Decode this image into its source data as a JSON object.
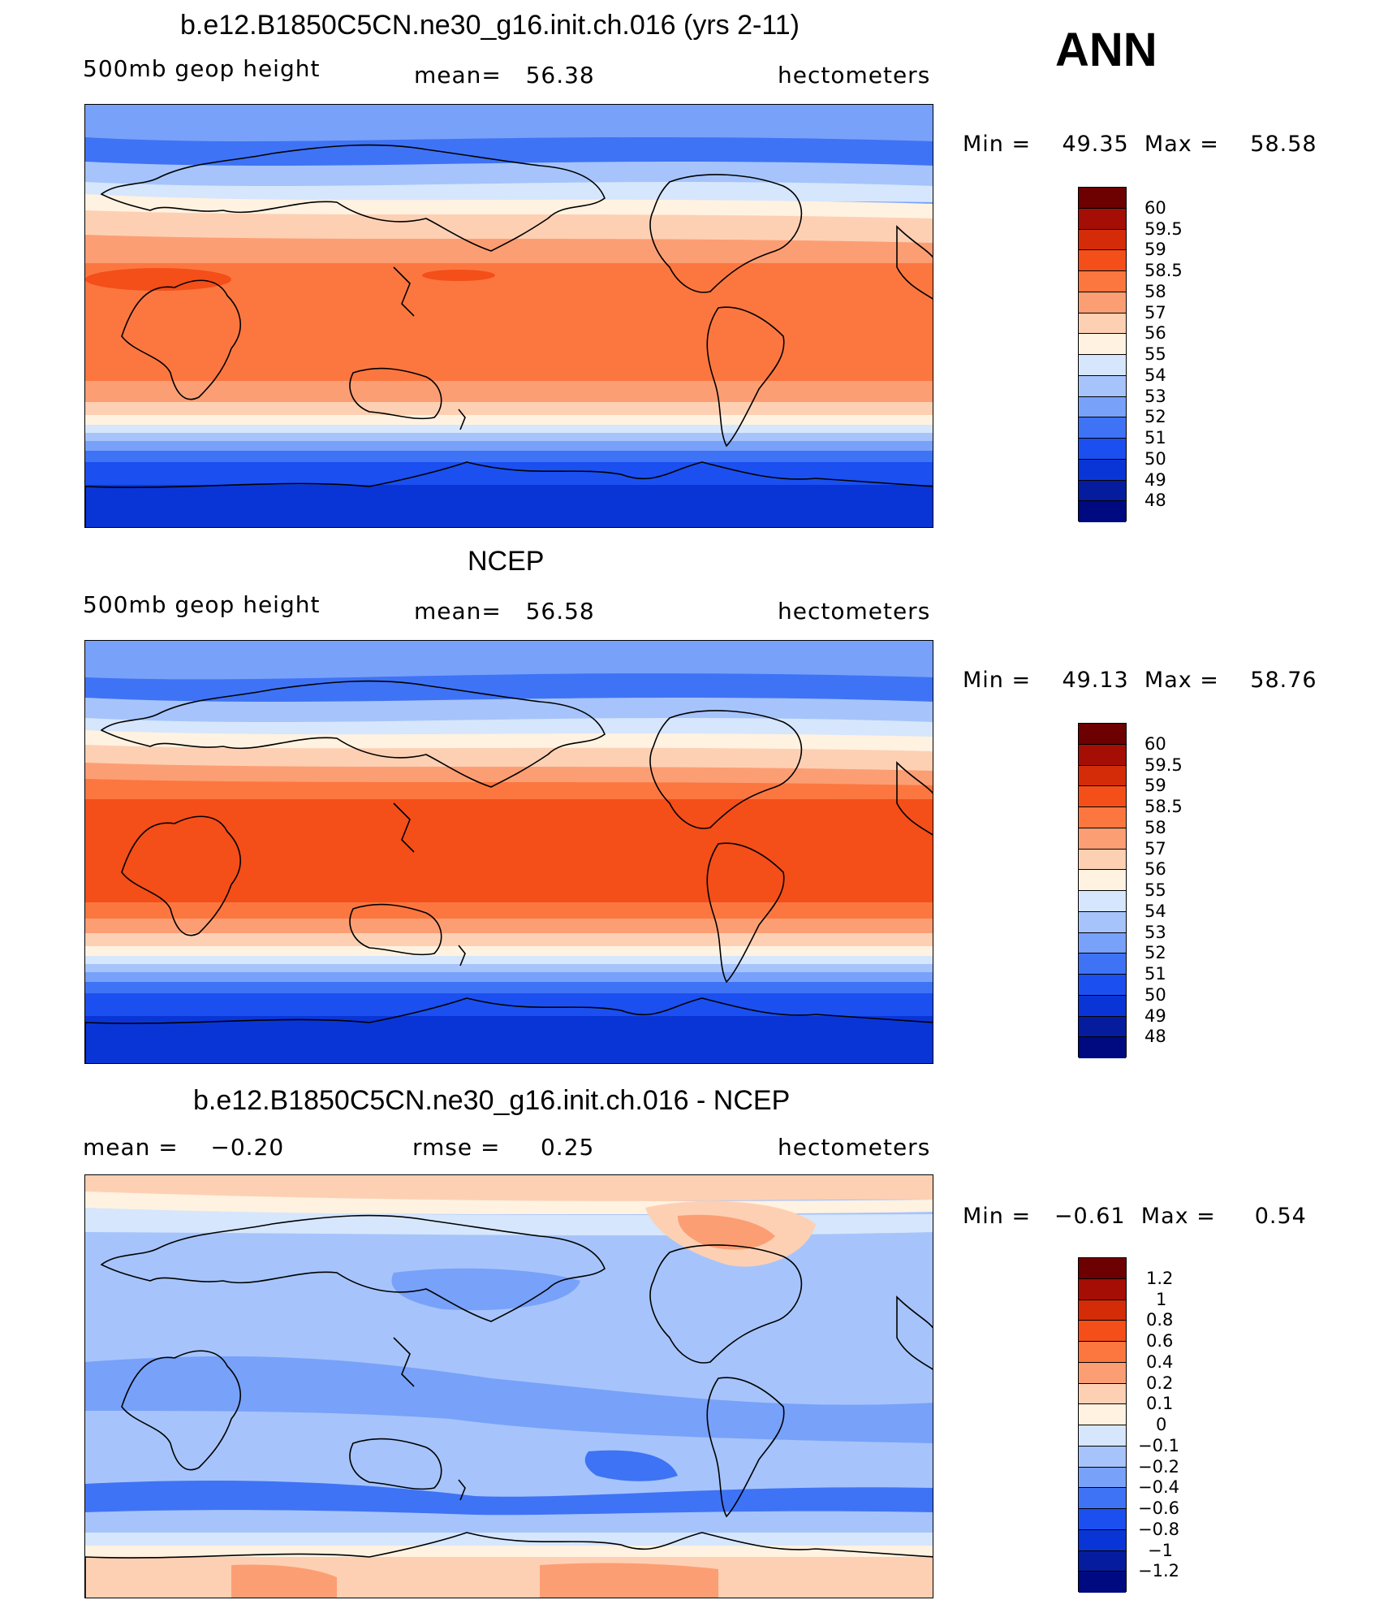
{
  "season": "ANN",
  "colors": {
    "scale": [
      "#000a80",
      "#061c9e",
      "#0a35d6",
      "#1b4fef",
      "#3f73f5",
      "#78a1f9",
      "#a6c4fb",
      "#d6e6fc",
      "#fff2e1",
      "#fdd0b4",
      "#fc9e73",
      "#fc7740",
      "#f44e19",
      "#d42b09",
      "#a50e05",
      "#6d0000"
    ],
    "coast": "#000000"
  },
  "panels": [
    {
      "id": "model",
      "title": "b.e12.B1850C5CN.ne30_g16.init.ch.016 (yrs 2-11)",
      "left": "500mb geop height",
      "mid": "mean=   56.38",
      "right": "hectometers",
      "minmax": "Min =    49.35  Max =    58.58",
      "levels": [
        "60",
        "59.5",
        "59",
        "58.5",
        "58",
        "57",
        "56",
        "55",
        "54",
        "53",
        "52",
        "51",
        "50",
        "49",
        "48"
      ]
    },
    {
      "id": "obs",
      "title": "NCEP",
      "left": "500mb geop height",
      "mid": "mean=   56.58",
      "right": "hectometers",
      "minmax": "Min =    49.13  Max =    58.76",
      "levels": [
        "60",
        "59.5",
        "59",
        "58.5",
        "58",
        "57",
        "56",
        "55",
        "54",
        "53",
        "52",
        "51",
        "50",
        "49",
        "48"
      ]
    },
    {
      "id": "diff",
      "title": "b.e12.B1850C5CN.ne30_g16.init.ch.016 - NCEP",
      "left": "mean =    −0.20",
      "mid": "rmse =     0.25",
      "right": "hectometers",
      "minmax": "Min =   −0.61  Max =     0.54",
      "levels": [
        "1.2",
        "1",
        "0.8",
        "0.6",
        "0.4",
        "0.2",
        "0.1",
        "0",
        "−0.1",
        "−0.2",
        "−0.4",
        "−0.6",
        "−0.8",
        "−1",
        "−1.2"
      ]
    }
  ]
}
